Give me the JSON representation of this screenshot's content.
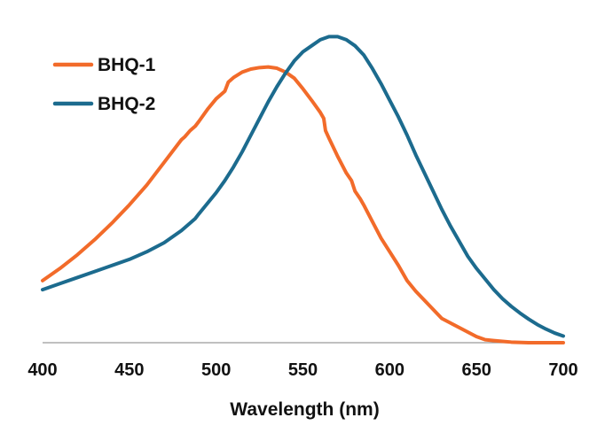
{
  "chart_data": {
    "type": "line",
    "title": "",
    "xlabel": "Wavelength (nm)",
    "ylabel": "",
    "xlim": [
      400,
      700
    ],
    "ylim": [
      0,
      1
    ],
    "xticks": [
      "400",
      "450",
      "500",
      "550",
      "600",
      "650",
      "700"
    ],
    "grid": false,
    "legend_position": "top-left",
    "series": [
      {
        "name": "BHQ-1",
        "color": "#f26b2a",
        "points": [
          [
            400,
            0.205
          ],
          [
            410,
            0.245
          ],
          [
            420,
            0.29
          ],
          [
            430,
            0.34
          ],
          [
            440,
            0.395
          ],
          [
            450,
            0.455
          ],
          [
            460,
            0.52
          ],
          [
            470,
            0.595
          ],
          [
            480,
            0.67
          ],
          [
            482,
            0.68
          ],
          [
            485,
            0.7
          ],
          [
            488,
            0.715
          ],
          [
            490,
            0.73
          ],
          [
            495,
            0.77
          ],
          [
            500,
            0.805
          ],
          [
            505,
            0.83
          ],
          [
            507,
            0.86
          ],
          [
            510,
            0.875
          ],
          [
            515,
            0.893
          ],
          [
            520,
            0.903
          ],
          [
            525,
            0.908
          ],
          [
            530,
            0.91
          ],
          [
            535,
            0.906
          ],
          [
            540,
            0.893
          ],
          [
            545,
            0.873
          ],
          [
            550,
            0.838
          ],
          [
            555,
            0.8
          ],
          [
            560,
            0.76
          ],
          [
            562,
            0.74
          ],
          [
            563,
            0.7
          ],
          [
            565,
            0.675
          ],
          [
            570,
            0.615
          ],
          [
            575,
            0.56
          ],
          [
            578,
            0.535
          ],
          [
            580,
            0.5
          ],
          [
            583,
            0.475
          ],
          [
            585,
            0.455
          ],
          [
            590,
            0.4
          ],
          [
            595,
            0.345
          ],
          [
            600,
            0.3
          ],
          [
            605,
            0.255
          ],
          [
            610,
            0.205
          ],
          [
            615,
            0.17
          ],
          [
            620,
            0.14
          ],
          [
            625,
            0.11
          ],
          [
            630,
            0.08
          ],
          [
            635,
            0.065
          ],
          [
            640,
            0.05
          ],
          [
            645,
            0.035
          ],
          [
            650,
            0.02
          ],
          [
            655,
            0.01
          ],
          [
            660,
            0.007
          ],
          [
            670,
            0.002
          ],
          [
            680,
            0.0
          ],
          [
            700,
            0.0
          ]
        ]
      },
      {
        "name": "BHQ-2",
        "color": "#1c6b8e",
        "points": [
          [
            400,
            0.175
          ],
          [
            410,
            0.195
          ],
          [
            420,
            0.215
          ],
          [
            430,
            0.235
          ],
          [
            440,
            0.255
          ],
          [
            450,
            0.275
          ],
          [
            460,
            0.3
          ],
          [
            470,
            0.33
          ],
          [
            480,
            0.37
          ],
          [
            485,
            0.395
          ],
          [
            488,
            0.41
          ],
          [
            490,
            0.425
          ],
          [
            495,
            0.46
          ],
          [
            500,
            0.495
          ],
          [
            505,
            0.535
          ],
          [
            510,
            0.58
          ],
          [
            515,
            0.63
          ],
          [
            520,
            0.685
          ],
          [
            525,
            0.74
          ],
          [
            530,
            0.795
          ],
          [
            535,
            0.845
          ],
          [
            540,
            0.89
          ],
          [
            545,
            0.93
          ],
          [
            550,
            0.96
          ],
          [
            555,
            0.98
          ],
          [
            560,
            1.0
          ],
          [
            565,
            1.01
          ],
          [
            570,
            1.01
          ],
          [
            575,
            1.0
          ],
          [
            580,
            0.98
          ],
          [
            585,
            0.95
          ],
          [
            590,
            0.905
          ],
          [
            595,
            0.855
          ],
          [
            600,
            0.8
          ],
          [
            605,
            0.745
          ],
          [
            610,
            0.685
          ],
          [
            615,
            0.62
          ],
          [
            620,
            0.56
          ],
          [
            625,
            0.5
          ],
          [
            630,
            0.44
          ],
          [
            635,
            0.385
          ],
          [
            640,
            0.335
          ],
          [
            645,
            0.285
          ],
          [
            650,
            0.245
          ],
          [
            655,
            0.21
          ],
          [
            660,
            0.175
          ],
          [
            665,
            0.145
          ],
          [
            670,
            0.12
          ],
          [
            675,
            0.098
          ],
          [
            680,
            0.078
          ],
          [
            685,
            0.06
          ],
          [
            690,
            0.045
          ],
          [
            695,
            0.032
          ],
          [
            700,
            0.022
          ]
        ]
      }
    ]
  }
}
